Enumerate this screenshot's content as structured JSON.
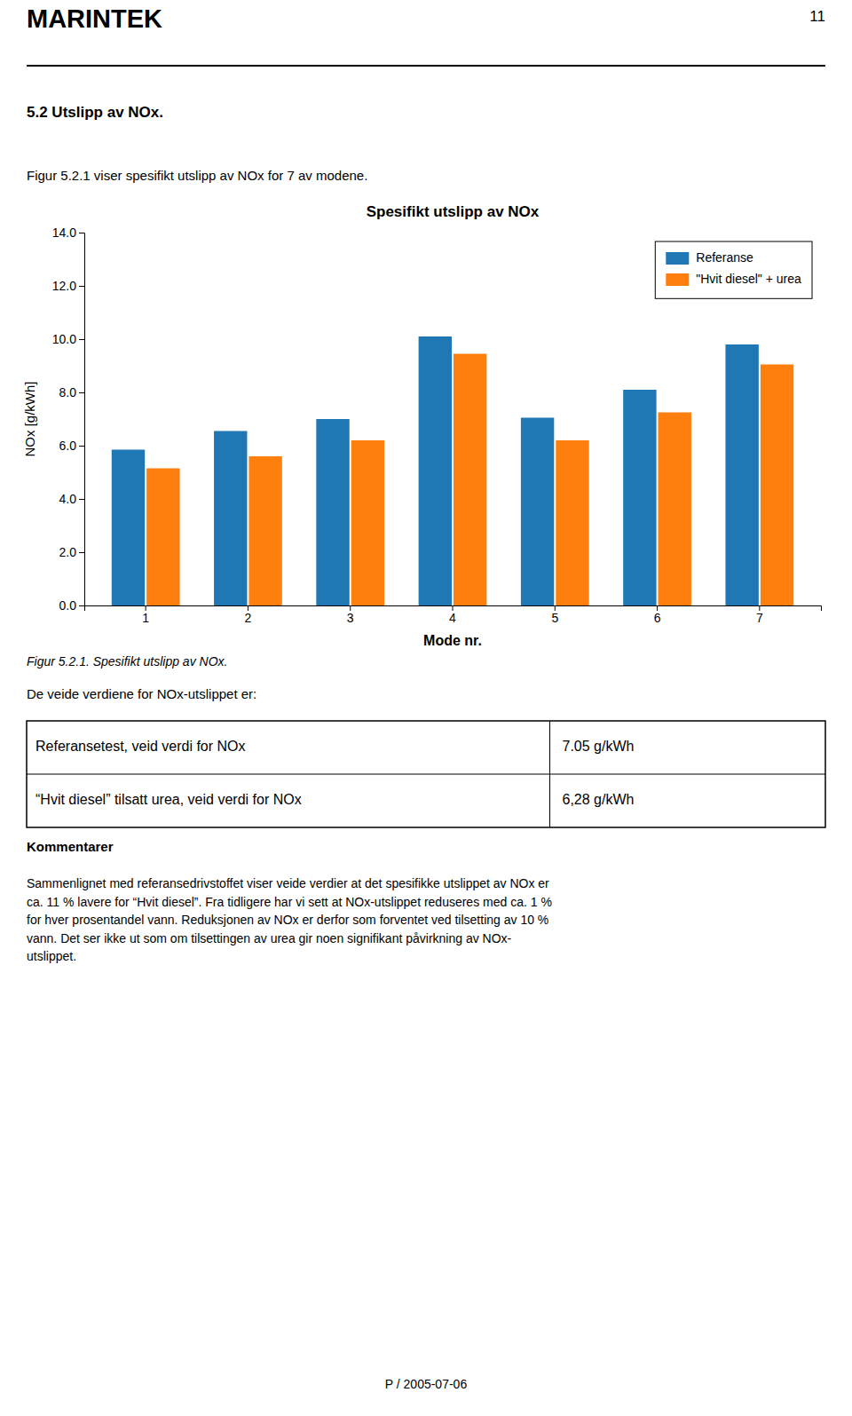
{
  "page_title": "MARINTEK",
  "page_number": "11",
  "section_heading": "5.2  Utslipp av NOx.",
  "intro_text": "Figur 5.2.1 viser spesifikt utslipp av NOx for 7 av modene.",
  "fig_caption": "Figur 5.2.1. Spesifikt utslipp av NOx.",
  "veide_text": "De veide verdiene for NOx-utslippet er:",
  "table_rows": [
    {
      "label": "Referansetest, veid verdi for NOx",
      "value": "7.05 g/kWh"
    },
    {
      "label": "“Hvit diesel” tilsatt urea,  veid verdi for NOx",
      "value": "6,28 g/kWh"
    }
  ],
  "kommentarer_heading": "Kommentarer",
  "kommentarer_lines": [
    "Sammenlignet med referansedrivstoffet viser veide verdier at det spesifikke utslippet av NOx er",
    "ca. 11 % lavere for “Hvit diesel”. Fra tidligere har vi sett at NOx-utslippet reduseres med ca. 1 %",
    "for hver prosentandel vann. Reduksjonen av NOx er derfor som forventet ved tilsetting av 10 %",
    "vann. Det ser ikke ut som om tilsettingen av urea gir noen signifikant påvirkning av NOx-",
    "utslippet."
  ],
  "footer_text": "P / 2005-07-06",
  "chart_data": {
    "type": "bar",
    "title": "Spesifikt utslipp av NOx",
    "x_label": "Mode nr.",
    "y_label": "NOx  [g/kWh]",
    "categories": [
      1,
      2,
      3,
      4,
      5,
      6,
      7
    ],
    "series": [
      {
        "name": "Referanse",
        "values": [
          5.85,
          6.55,
          7.0,
          10.1,
          7.05,
          8.1,
          9.8
        ]
      },
      {
        "name": "\"Hvit diesel\" + urea",
        "values": [
          5.15,
          5.6,
          6.2,
          9.45,
          6.2,
          7.25,
          9.05
        ]
      }
    ],
    "ylim": [
      0,
      14
    ],
    "yticks": [
      {
        "value": 0,
        "label": "0.0"
      },
      {
        "value": 2,
        "label": "2.0"
      },
      {
        "value": 4,
        "label": "4.0"
      },
      {
        "value": 6,
        "label": "6.0"
      },
      {
        "value": 8,
        "label": "8.0"
      },
      {
        "value": 10,
        "label": "10.0"
      },
      {
        "value": 12,
        "label": "12.0"
      },
      {
        "value": 14,
        "label": "14.0"
      }
    ],
    "grid": false,
    "legend": "upper right"
  }
}
